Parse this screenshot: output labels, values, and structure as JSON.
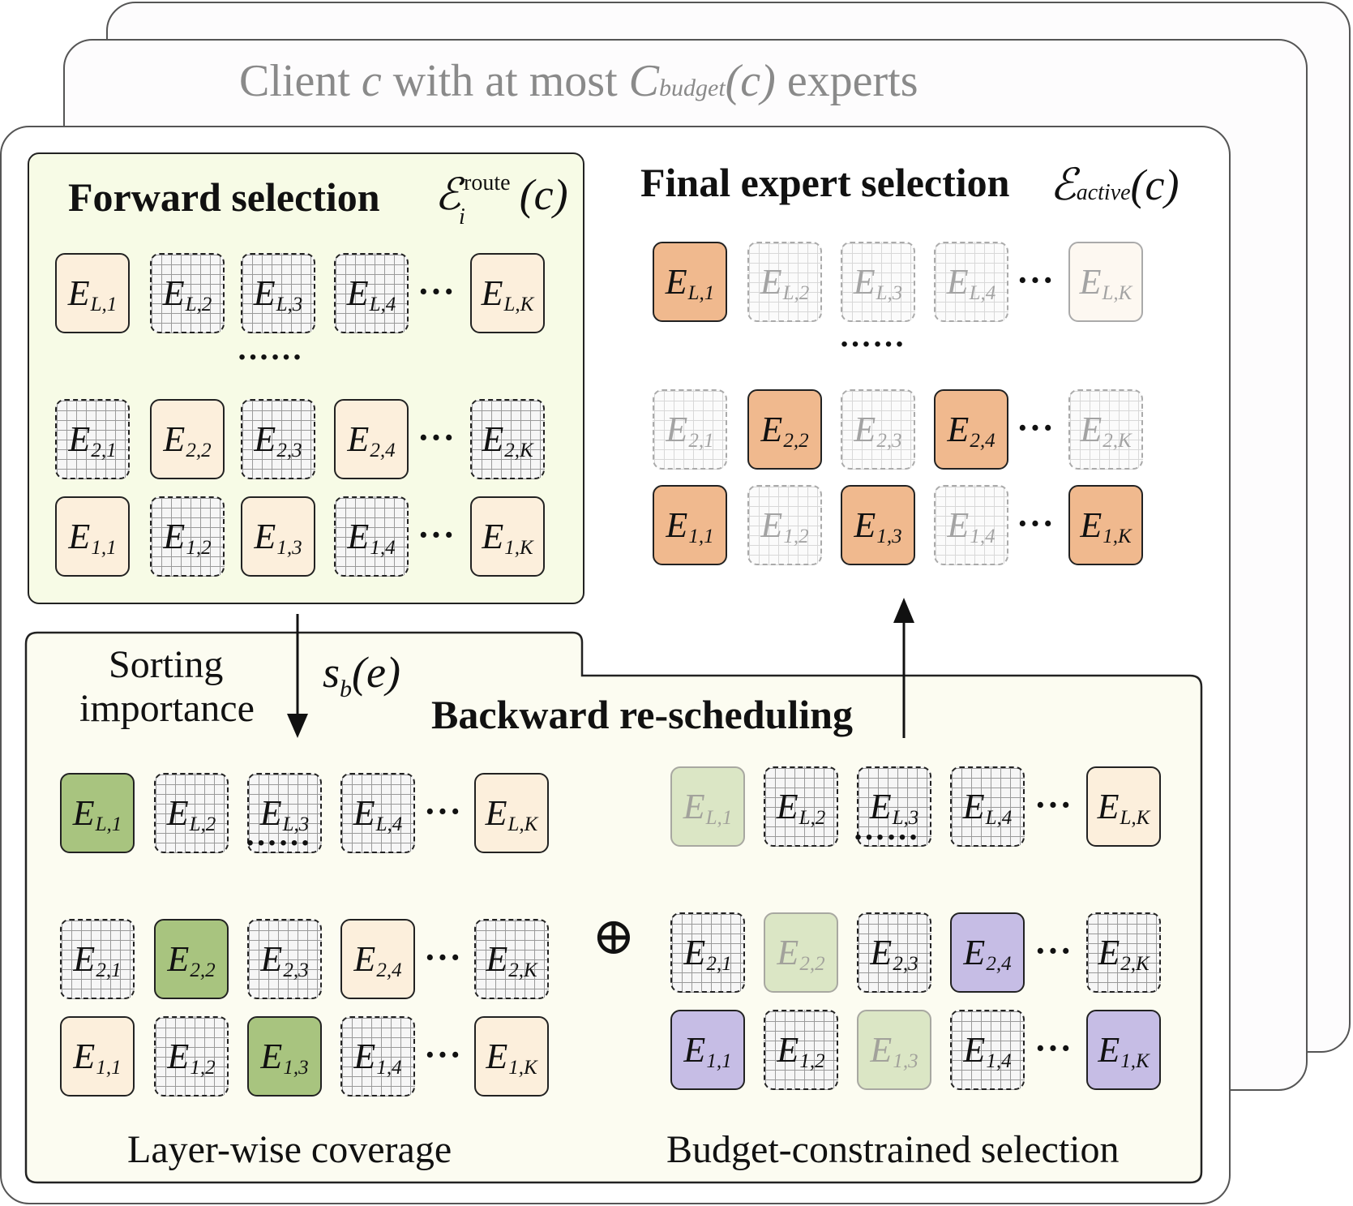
{
  "client_header": {
    "prefix": "Client ",
    "c": "c",
    "middle": " with at most ",
    "C": "C",
    "budget_sub": "budget",
    "arg": "(c)",
    "suffix": " experts"
  },
  "forward": {
    "title": "Forward selection",
    "math_E": "ℰ",
    "math_sup": "route",
    "math_sub": "i",
    "math_arg": "(c)"
  },
  "final": {
    "title": "Final expert selection",
    "math_E": "ℰ",
    "math_sub": "active",
    "math_arg": "(c)"
  },
  "sorting": {
    "line1": "Sorting",
    "line2": "importance",
    "math_s": "s",
    "math_sub": "b",
    "math_arg": "(e)"
  },
  "backward": {
    "title": "Backward re-scheduling"
  },
  "layer_caption": "Layer-wise coverage",
  "budget_caption": "Budget-constrained selection",
  "oplus": "⊕",
  "dots_mid": "……",
  "dots_row": "···",
  "colors": {
    "forward_panel": "#f7fbe6",
    "backward_panel": "#fcfcf1",
    "selected": "#fcefdc",
    "final_selected": "#f0b98e",
    "coverage": "#a8c47f",
    "budget": "#c6bde5"
  },
  "expert_rows": {
    "L": {
      "E": "E",
      "subs": [
        "L,1",
        "L,2",
        "L,3",
        "L,4",
        "L,K"
      ]
    },
    "2": {
      "E": "E",
      "subs": [
        "2,1",
        "2,2",
        "2,3",
        "2,4",
        "2,K"
      ]
    },
    "1": {
      "E": "E",
      "subs": [
        "1,1",
        "1,2",
        "1,3",
        "1,4",
        "1,K"
      ]
    }
  },
  "states": {
    "forward": {
      "L": [
        "sel",
        "grid",
        "grid",
        "grid",
        "sel"
      ],
      "2": [
        "grid",
        "sel",
        "grid",
        "sel",
        "grid"
      ],
      "1": [
        "sel",
        "grid",
        "sel",
        "grid",
        "sel"
      ]
    },
    "final": {
      "L": [
        "active",
        "grid-faded",
        "grid-faded",
        "grid-faded",
        "sel-faded"
      ],
      "2": [
        "grid-faded",
        "active",
        "grid-faded",
        "active",
        "grid-faded"
      ],
      "1": [
        "active",
        "grid-faded",
        "active",
        "grid-faded",
        "active"
      ]
    },
    "coverage": {
      "L": [
        "green",
        "grid",
        "grid",
        "grid",
        "sel"
      ],
      "2": [
        "grid",
        "green",
        "grid",
        "sel",
        "grid"
      ],
      "1": [
        "sel",
        "grid",
        "green",
        "grid",
        "sel"
      ]
    },
    "budget": {
      "L": [
        "green-faded",
        "grid",
        "grid",
        "grid",
        "sel"
      ],
      "2": [
        "grid",
        "green-faded",
        "grid",
        "purple",
        "grid"
      ],
      "1": [
        "purple",
        "grid",
        "green-faded",
        "grid",
        "purple"
      ]
    }
  }
}
